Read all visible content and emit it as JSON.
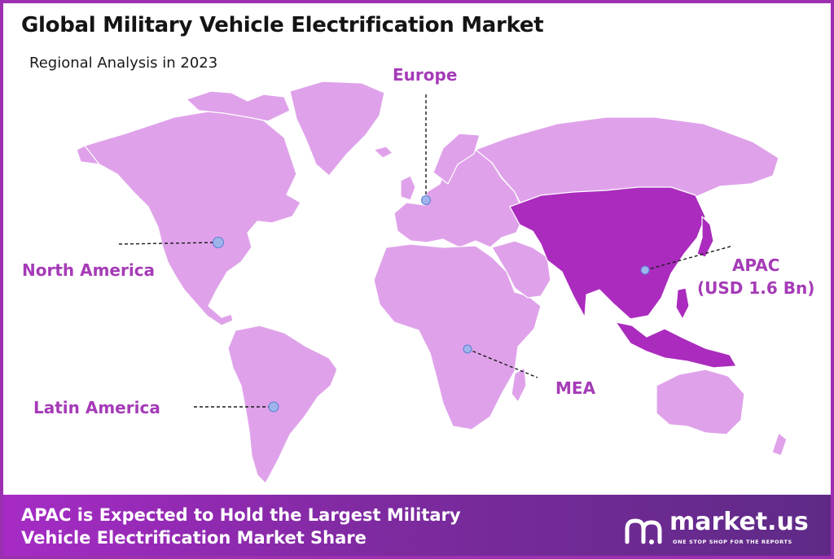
{
  "header": {
    "title": "Global Military Vehicle Electrification Market",
    "subtitle": "Regional Analysis in 2023"
  },
  "map": {
    "regions": [
      {
        "id": "north-america",
        "label": "North America",
        "color": "#dfa2ea",
        "highlighted": false
      },
      {
        "id": "europe",
        "label": "Europe",
        "color": "#dfa2ea",
        "highlighted": false
      },
      {
        "id": "latin-america",
        "label": "Latin America",
        "color": "#dfa2ea",
        "highlighted": false
      },
      {
        "id": "mea",
        "label": "MEA",
        "color": "#dfa2ea",
        "highlighted": false
      },
      {
        "id": "apac",
        "label": "APAC",
        "value": "(USD 1.6 Bn)",
        "color": "#aa2bbd",
        "highlighted": true
      }
    ],
    "marker_color": "#9fb4ea",
    "label_color": "#a53bb7"
  },
  "footer": {
    "line1": "APAC is Expected to Hold the Largest Military",
    "line2": "Vehicle Electrification Market Share",
    "brand_name": "market.us",
    "brand_tagline": "ONE STOP SHOP FOR THE REPORTS"
  }
}
